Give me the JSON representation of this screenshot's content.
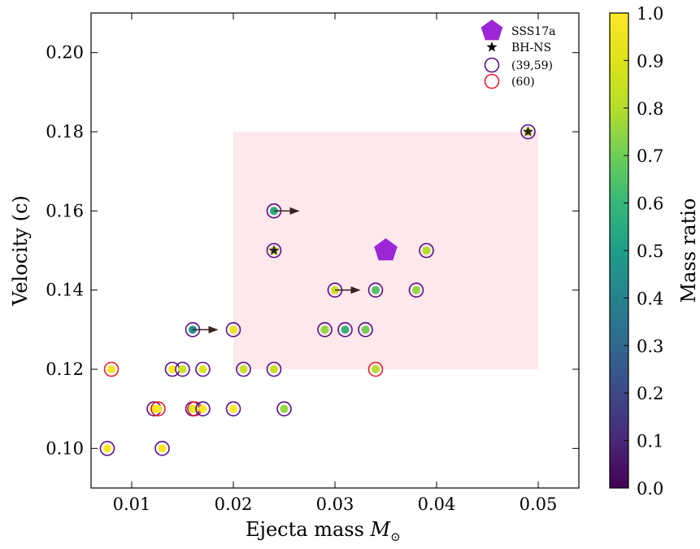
{
  "chart_data": {
    "type": "scatter",
    "xlabel": "Ejecta mass",
    "xlabel_symbol": "M",
    "xlabel_subscript": "⊙",
    "ylabel": "Velocity (c)",
    "xlim": [
      0.006,
      0.054
    ],
    "ylim": [
      0.09,
      0.21
    ],
    "x_ticks": [
      0.01,
      0.02,
      0.03,
      0.04,
      0.05
    ],
    "x_tick_labels": [
      "0.01",
      "0.02",
      "0.03",
      "0.04",
      "0.05"
    ],
    "y_ticks": [
      0.1,
      0.12,
      0.14,
      0.16,
      0.18,
      0.2
    ],
    "y_tick_labels": [
      "0.10",
      "0.12",
      "0.14",
      "0.16",
      "0.18",
      "0.20"
    ],
    "grid": false,
    "legend_placement": "top-right",
    "highlight_region": {
      "x": [
        0.02,
        0.05
      ],
      "y": [
        0.12,
        0.18
      ],
      "color": "#fde8ec"
    },
    "colorbar": {
      "label": "Mass ratio",
      "range": [
        0.0,
        1.0
      ],
      "ticks": [
        0.0,
        0.1,
        0.2,
        0.3,
        0.4,
        0.5,
        0.6,
        0.7,
        0.8,
        0.9,
        1.0
      ],
      "tick_labels": [
        "0.0",
        "0.1",
        "0.2",
        "0.3",
        "0.4",
        "0.5",
        "0.6",
        "0.7",
        "0.8",
        "0.9",
        "1.0"
      ],
      "colormap": "viridis"
    },
    "legend": [
      {
        "label": "SSS17a",
        "marker": "pentagon",
        "color": "#9c27d6"
      },
      {
        "label": "BH-NS",
        "marker": "star",
        "color": "#000000"
      },
      {
        "label": "(39,59)",
        "marker": "ring",
        "color": "#5a0f87"
      },
      {
        "label": "(60)",
        "marker": "ring",
        "color": "#e8202a"
      }
    ],
    "special_points": [
      {
        "label": "SSS17a",
        "x": 0.035,
        "y": 0.15,
        "marker": "pentagon",
        "color": "#9c27d6"
      }
    ],
    "points": [
      {
        "x": 0.0076,
        "y": 0.1,
        "q": 1.0,
        "ring": "(39,59)"
      },
      {
        "x": 0.008,
        "y": 0.12,
        "q": 1.0,
        "ring": "(60)"
      },
      {
        "x": 0.0122,
        "y": 0.11,
        "q": 1.0,
        "ring": "(39,59)"
      },
      {
        "x": 0.0126,
        "y": 0.11,
        "q": 1.0,
        "ring": "(60)"
      },
      {
        "x": 0.013,
        "y": 0.1,
        "q": 1.0,
        "ring": "(39,59)"
      },
      {
        "x": 0.014,
        "y": 0.12,
        "q": 1.0,
        "ring": "(39,59)"
      },
      {
        "x": 0.015,
        "y": 0.12,
        "q": 0.85,
        "ring": "(39,59)"
      },
      {
        "x": 0.016,
        "y": 0.11,
        "q": 0.85,
        "ring": "(39,59)"
      },
      {
        "x": 0.0162,
        "y": 0.11,
        "q": 1.0,
        "ring": "(60)"
      },
      {
        "x": 0.016,
        "y": 0.13,
        "q": 0.45,
        "ring": "(39,59)",
        "arrow": true
      },
      {
        "x": 0.017,
        "y": 0.11,
        "q": 1.0,
        "ring": "(39,59)"
      },
      {
        "x": 0.017,
        "y": 0.12,
        "q": 0.9,
        "ring": "(39,59)"
      },
      {
        "x": 0.02,
        "y": 0.11,
        "q": 1.0,
        "ring": "(39,59)"
      },
      {
        "x": 0.02,
        "y": 0.13,
        "q": 0.95,
        "ring": "(39,59)"
      },
      {
        "x": 0.021,
        "y": 0.12,
        "q": 0.85,
        "ring": "(39,59)"
      },
      {
        "x": 0.024,
        "y": 0.12,
        "q": 0.85,
        "ring": "(39,59)"
      },
      {
        "x": 0.024,
        "y": 0.15,
        "q": 0.9,
        "ring": "(39,59)",
        "star": true
      },
      {
        "x": 0.024,
        "y": 0.16,
        "q": 0.55,
        "ring": "(39,59)",
        "arrow": true
      },
      {
        "x": 0.025,
        "y": 0.11,
        "q": 0.75,
        "ring": "(39,59)"
      },
      {
        "x": 0.029,
        "y": 0.13,
        "q": 0.75,
        "ring": "(39,59)"
      },
      {
        "x": 0.03,
        "y": 0.14,
        "q": 0.85,
        "ring": "(39,59)",
        "arrow": true
      },
      {
        "x": 0.031,
        "y": 0.13,
        "q": 0.6,
        "ring": "(39,59)"
      },
      {
        "x": 0.033,
        "y": 0.13,
        "q": 0.7,
        "ring": "(39,59)"
      },
      {
        "x": 0.034,
        "y": 0.14,
        "q": 0.65,
        "ring": "(39,59)"
      },
      {
        "x": 0.034,
        "y": 0.12,
        "q": 0.8,
        "ring": "(60)"
      },
      {
        "x": 0.038,
        "y": 0.14,
        "q": 0.75,
        "ring": "(39,59)"
      },
      {
        "x": 0.039,
        "y": 0.15,
        "q": 0.8,
        "ring": "(39,59)"
      },
      {
        "x": 0.049,
        "y": 0.18,
        "q": 0.9,
        "ring": "(39,59)",
        "star": true
      }
    ]
  }
}
